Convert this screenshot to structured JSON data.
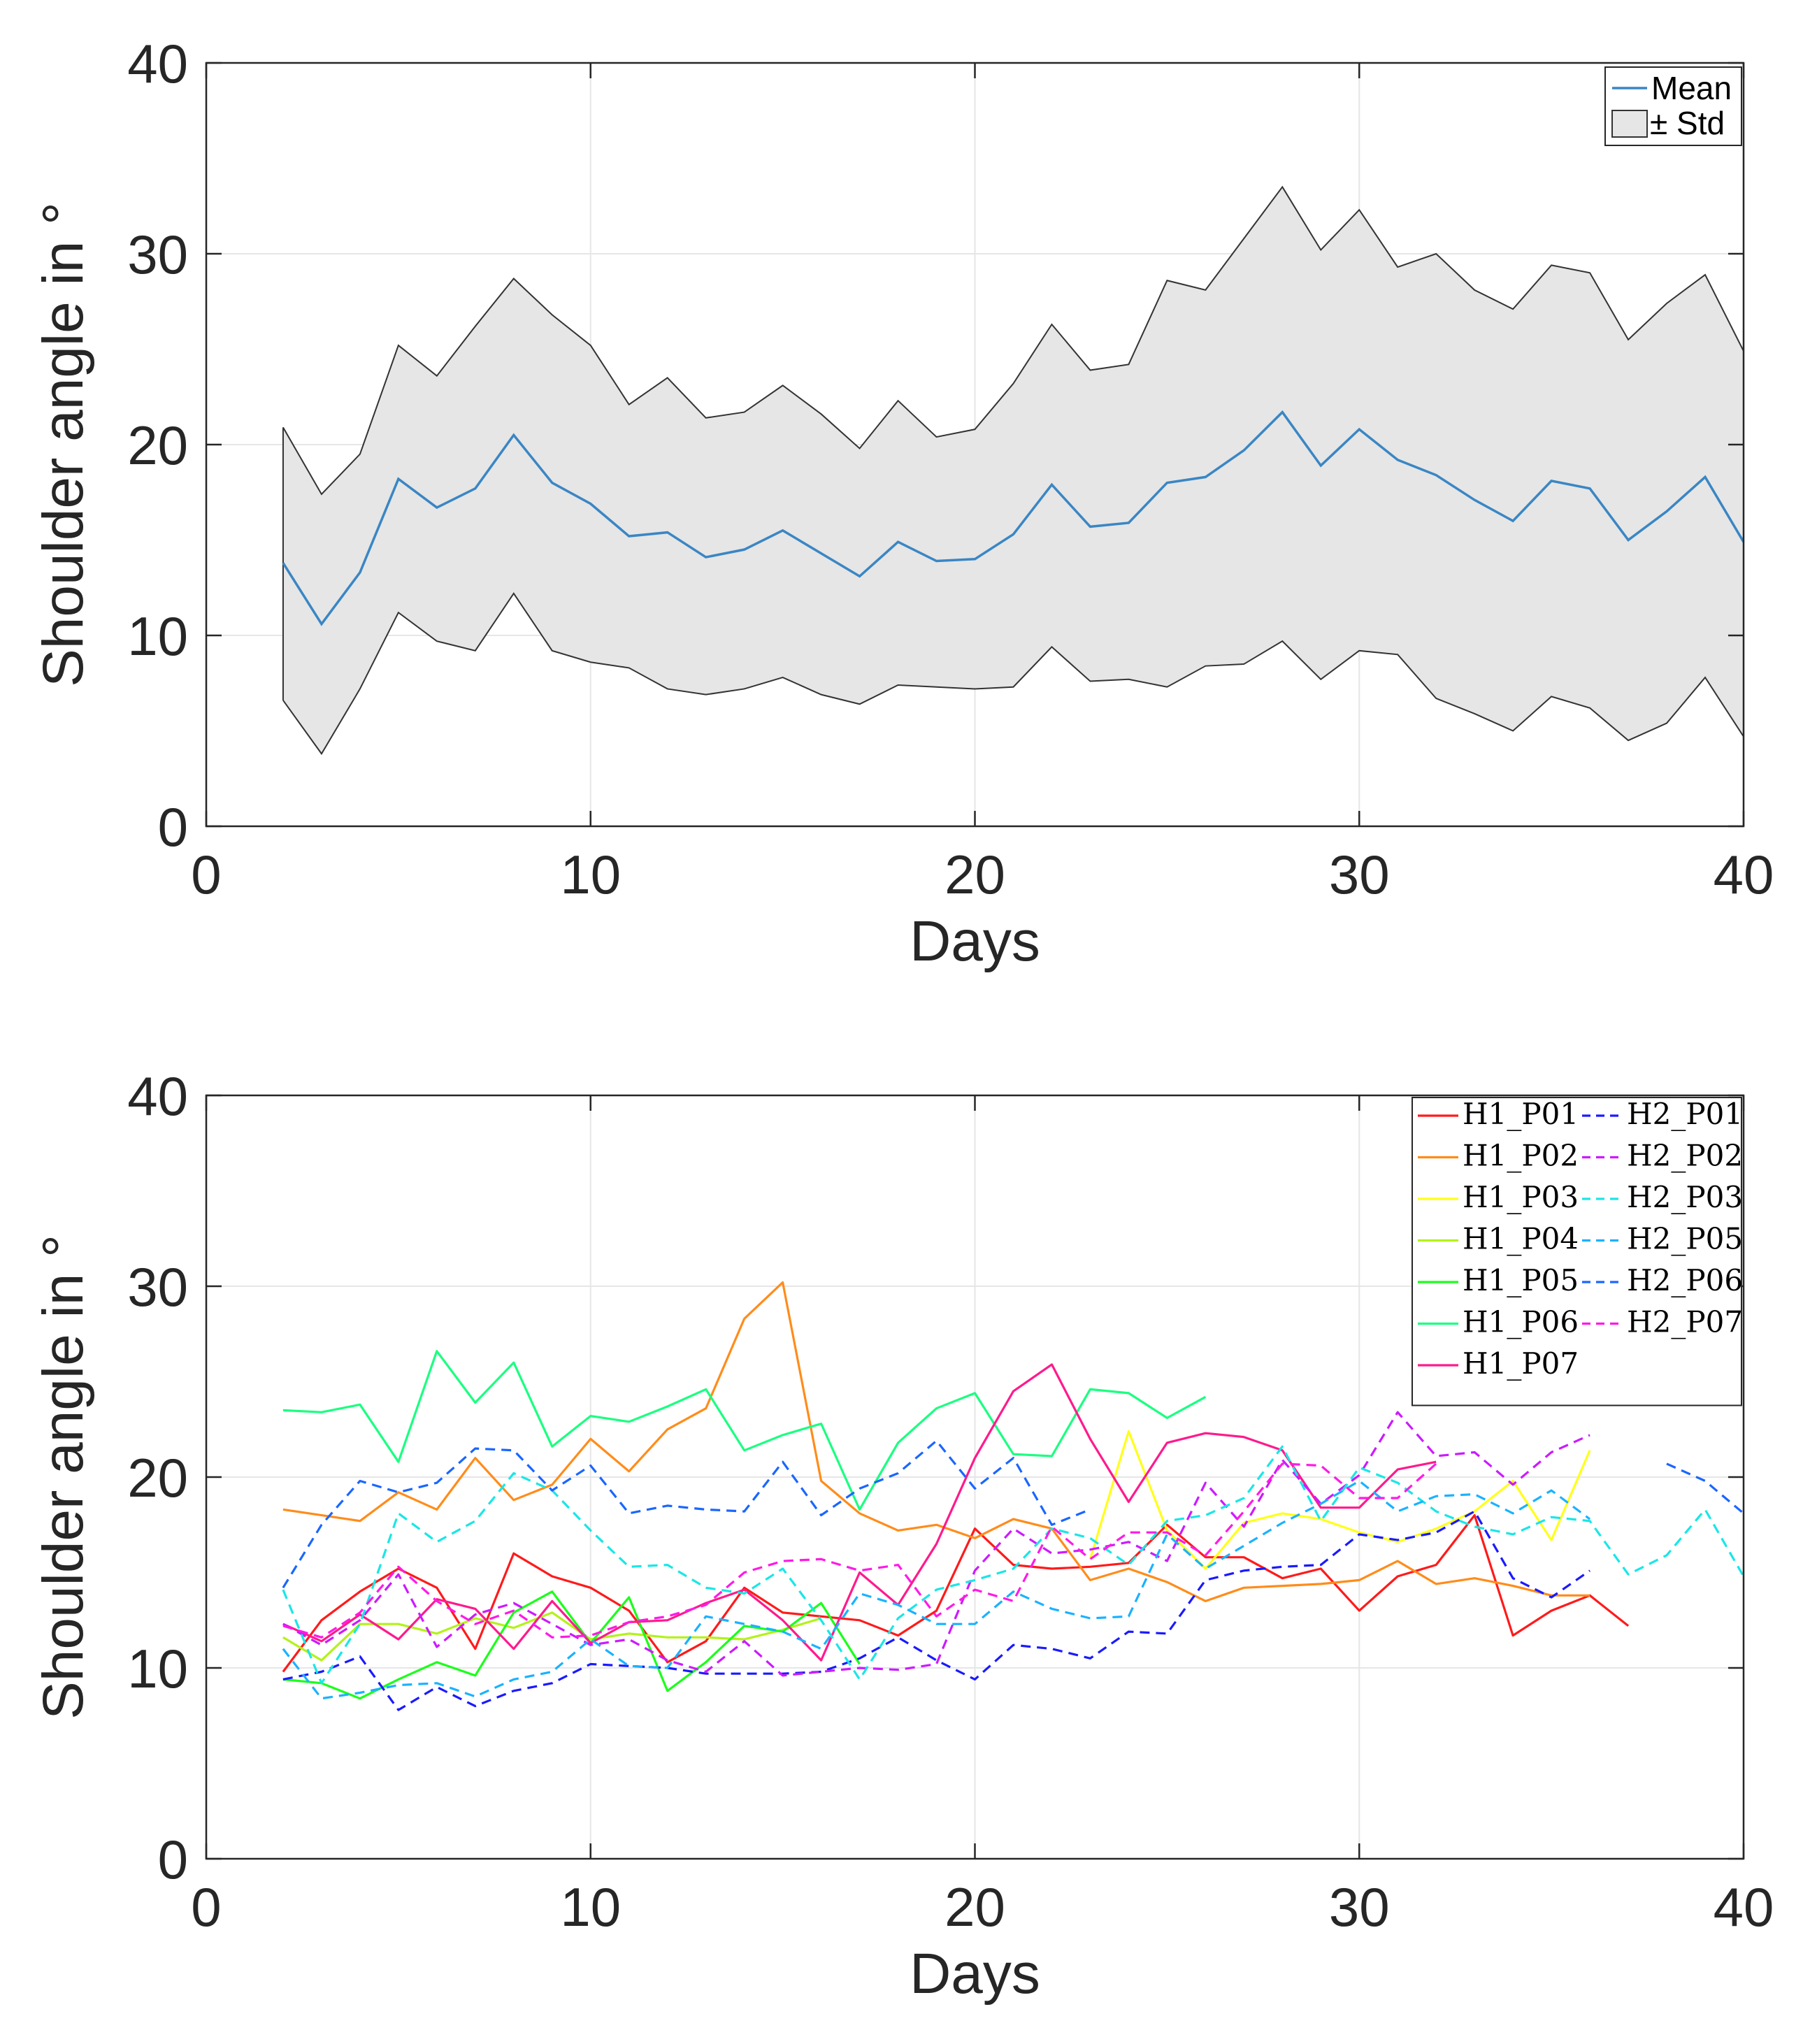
{
  "colors": {
    "axis": "#262626",
    "grid": "#e6e6e6",
    "mean": "#3a86c4",
    "std_fill": "#e6e6e6",
    "std_edge": "#333333"
  },
  "chart_data": [
    {
      "type": "line",
      "title": "",
      "xlabel": "Days",
      "ylabel": "Shoulder angle in °",
      "xlim": [
        0,
        40
      ],
      "ylim": [
        0,
        40
      ],
      "xticks": [
        "0",
        "10",
        "20",
        "30",
        "40"
      ],
      "yticks": [
        "0",
        "10",
        "20",
        "30",
        "40"
      ],
      "grid": true,
      "legend_position": "top-right",
      "legend": [
        "Mean",
        "± Std"
      ],
      "x": [
        2,
        3,
        4,
        5,
        6,
        7,
        8,
        9,
        10,
        11,
        12,
        13,
        14,
        15,
        16,
        17,
        18,
        19,
        20,
        21,
        22,
        23,
        24,
        25,
        26,
        27,
        28,
        29,
        30,
        31,
        32,
        33,
        34,
        35,
        36,
        37,
        38,
        39,
        40
      ],
      "series": [
        {
          "name": "Mean",
          "values": [
            13.8,
            10.6,
            13.3,
            18.2,
            16.7,
            17.7,
            20.5,
            18.0,
            16.9,
            15.2,
            15.4,
            14.1,
            14.5,
            15.5,
            14.3,
            13.1,
            14.9,
            13.9,
            14.0,
            15.3,
            17.9,
            15.7,
            15.9,
            18.0,
            18.3,
            19.7,
            21.7,
            18.9,
            20.8,
            19.2,
            18.4,
            17.1,
            16.0,
            18.1,
            17.7,
            15.0,
            16.5,
            18.3,
            14.9
          ]
        },
        {
          "name": "Upper (Mean + Std)",
          "values": [
            20.9,
            17.4,
            19.5,
            25.2,
            23.6,
            26.2,
            28.7,
            26.8,
            25.2,
            22.1,
            23.5,
            21.4,
            21.7,
            23.1,
            21.6,
            19.8,
            22.3,
            20.4,
            20.8,
            23.2,
            26.3,
            23.9,
            24.2,
            28.6,
            28.1,
            30.8,
            33.5,
            30.2,
            32.3,
            29.3,
            30.0,
            28.1,
            27.1,
            29.4,
            29.0,
            25.5,
            27.4,
            28.9,
            24.9
          ]
        },
        {
          "name": "Lower (Mean - Std)",
          "values": [
            6.6,
            3.8,
            7.2,
            11.2,
            9.7,
            9.2,
            12.2,
            9.2,
            8.6,
            8.3,
            7.2,
            6.9,
            7.2,
            7.8,
            6.9,
            6.4,
            7.4,
            7.3,
            7.2,
            7.3,
            9.4,
            7.6,
            7.7,
            7.3,
            8.4,
            8.5,
            9.7,
            7.7,
            9.2,
            9.0,
            6.7,
            5.9,
            5.0,
            6.8,
            6.2,
            4.5,
            5.4,
            7.8,
            4.7
          ]
        }
      ]
    },
    {
      "type": "line",
      "title": "",
      "xlabel": "Days",
      "ylabel": "Shoulder angle in °",
      "xlim": [
        0,
        40
      ],
      "ylim": [
        0,
        40
      ],
      "xticks": [
        "0",
        "10",
        "20",
        "30",
        "40"
      ],
      "yticks": [
        "0",
        "10",
        "20",
        "30",
        "40"
      ],
      "grid": true,
      "legend_position": "top-right",
      "series": [
        {
          "name": "H1_P01",
          "color": "#ff1a1a",
          "dash": false,
          "x_start": 2,
          "values": [
            9.8,
            12.5,
            14.0,
            15.2,
            14.2,
            11.0,
            16.0,
            14.8,
            14.2,
            13.0,
            10.3,
            11.4,
            14.2,
            12.9,
            12.7,
            12.5,
            11.7,
            13.0,
            17.3,
            15.4,
            15.2,
            15.3,
            15.5,
            17.5,
            15.8,
            15.8,
            14.7,
            15.2,
            13.0,
            14.8,
            15.4,
            18.0,
            11.7,
            13.0,
            13.8,
            12.2
          ]
        },
        {
          "name": "H1_P02",
          "color": "#ff8c1a",
          "dash": false,
          "x_start": 2,
          "values": [
            18.3,
            18.0,
            17.7,
            19.2,
            18.3,
            21.0,
            18.8,
            19.6,
            22.0,
            20.3,
            22.5,
            23.6,
            28.3,
            30.2,
            19.8,
            18.1,
            17.2,
            17.5,
            16.8,
            17.8,
            17.3,
            14.6,
            15.2,
            14.5,
            13.5,
            14.2,
            14.3,
            14.4,
            14.6,
            15.6,
            14.4,
            14.7,
            14.3,
            13.8,
            13.8
          ]
        },
        {
          "name": "H1_P03",
          "color": "#ffff1a",
          "dash": false,
          "x_start": 23,
          "values": [
            15.7,
            22.4,
            17.2,
            15.2,
            17.6,
            18.1,
            17.8,
            17.1,
            16.6,
            17.3,
            18.2,
            19.8,
            16.7,
            21.4
          ]
        },
        {
          "name": "H1_P04",
          "color": "#b3f21a",
          "dash": false,
          "x_start": 2,
          "values": [
            11.6,
            10.4,
            12.3,
            12.3,
            11.8,
            12.6,
            12.1,
            12.9,
            11.5,
            11.8,
            11.6,
            11.6,
            11.5,
            12.0,
            12.6
          ]
        },
        {
          "name": "H1_P05",
          "color": "#1aff1a",
          "dash": false,
          "x_start": 2,
          "values": [
            9.4,
            9.2,
            8.4,
            9.4,
            10.3,
            9.6,
            12.9,
            14.0,
            11.3,
            13.7,
            8.8,
            10.3,
            12.2,
            11.9,
            13.4,
            10.2
          ]
        },
        {
          "name": "H1_P06",
          "color": "#1aff80",
          "dash": false,
          "x_start": 2,
          "values": [
            23.5,
            23.4,
            23.8,
            20.8,
            26.6,
            23.9,
            26.0,
            21.6,
            23.2,
            22.9,
            23.7,
            24.6,
            21.4,
            22.2,
            22.8,
            18.3,
            21.8,
            23.6,
            24.4,
            21.2,
            21.1,
            24.6,
            24.4,
            23.1,
            24.2
          ]
        },
        {
          "name": "H1_P07",
          "color": "#ff1a8c",
          "dash": false,
          "x_start": 2,
          "values": [
            12.3,
            11.4,
            12.8,
            11.5,
            13.6,
            13.1,
            11.0,
            13.5,
            11.3,
            12.4,
            12.5,
            13.4,
            14.1,
            12.5,
            10.4,
            15.0,
            13.3,
            16.5,
            21.0,
            24.5,
            25.9,
            22.0,
            18.7,
            21.8,
            22.3,
            22.1,
            21.4,
            18.4,
            18.4,
            20.4,
            20.8
          ]
        },
        {
          "name": "H2_P01",
          "color": "#1a1aff",
          "dash": true,
          "x_start": 2,
          "values": [
            9.4,
            9.8,
            10.6,
            7.8,
            9.0,
            8.0,
            8.8,
            9.2,
            10.2,
            10.1,
            10.0,
            9.7,
            9.7,
            9.7,
            9.8,
            10.5,
            11.6,
            10.4,
            9.4,
            11.2,
            11.0,
            10.5,
            11.9,
            11.8,
            14.6,
            15.1,
            15.3,
            15.4,
            17.0,
            16.7,
            17.1,
            18.2,
            14.7,
            13.7,
            15.1
          ]
        },
        {
          "name": "H2_P02",
          "color": "#cc1aff",
          "dash": true,
          "x_start": 2,
          "values": [
            12.3,
            11.2,
            12.5,
            14.9,
            11.1,
            12.8,
            13.4,
            12.3,
            11.2,
            11.5,
            10.4,
            9.8,
            11.4,
            9.6,
            9.8,
            10.0,
            9.9,
            10.2,
            15.1,
            17.3,
            16.0,
            16.2,
            16.6,
            15.6,
            19.7,
            17.4,
            20.9,
            18.6,
            20.1,
            23.4,
            21.1,
            21.3,
            19.6,
            21.3,
            22.2
          ]
        },
        {
          "name": "H2_P03",
          "color": "#1ae6e6",
          "dash": true,
          "x_start": 2,
          "values": [
            14.1,
            9.2,
            12.3,
            18.1,
            16.6,
            17.7,
            20.2,
            19.3,
            17.2,
            15.3,
            15.4,
            14.2,
            13.9,
            15.2,
            12.5,
            9.4,
            12.6,
            14.1,
            14.6,
            15.2,
            17.3,
            16.8,
            15.4,
            17.7,
            18.0,
            18.9,
            21.6,
            17.7,
            20.5,
            19.7,
            18.2,
            17.4,
            17.0,
            17.9,
            17.7,
            14.9,
            15.9,
            18.3,
            14.8
          ]
        },
        {
          "name": "H2_P05",
          "color": "#1ab2ff",
          "dash": true,
          "x_start": 2,
          "values": [
            11.0,
            8.4,
            8.7,
            9.1,
            9.2,
            8.5,
            9.4,
            9.8,
            11.5,
            10.1,
            10.0,
            12.7,
            12.3,
            11.9,
            11.0,
            13.9,
            13.3,
            12.3,
            12.3,
            14.0,
            13.1,
            12.6,
            12.7,
            17.0,
            15.2,
            16.4,
            17.6,
            18.6,
            19.8,
            18.2,
            19.0,
            19.1,
            18.1,
            19.3,
            17.8
          ]
        },
        {
          "name": "H2_P06",
          "color": "#1a66ff",
          "dash": true,
          "x_start": 2,
          "values": [
            14.2,
            17.5,
            19.8,
            19.2,
            19.7,
            21.5,
            21.4,
            19.3,
            20.6,
            18.1,
            18.5,
            18.3,
            18.2,
            20.8,
            18.0,
            19.4,
            20.2,
            21.9,
            19.4,
            21.0,
            17.5,
            18.3,
            null,
            null,
            null,
            null,
            null,
            null,
            null,
            null,
            null,
            null,
            null,
            null,
            null,
            null,
            20.7,
            19.8,
            18.1
          ]
        },
        {
          "name": "H2_P07",
          "color": "#ff1ae6",
          "dash": true,
          "x_start": 2,
          "values": [
            12.2,
            11.6,
            12.9,
            15.3,
            13.5,
            12.3,
            13.0,
            11.6,
            11.7,
            12.4,
            12.7,
            13.3,
            15.0,
            15.6,
            15.7,
            15.1,
            15.4,
            12.7,
            14.1,
            13.5,
            17.4,
            15.7,
            17.1,
            17.1,
            15.9,
            18.2,
            20.7,
            20.6,
            18.9,
            18.9,
            20.7
          ]
        }
      ]
    }
  ]
}
